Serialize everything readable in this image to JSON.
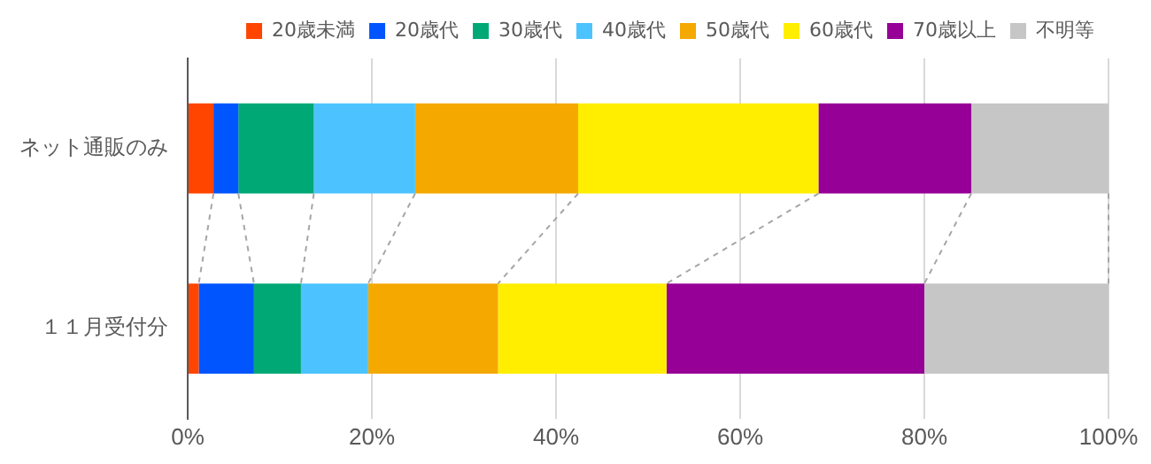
{
  "chart_data": {
    "type": "bar",
    "orientation": "horizontal",
    "stacked": true,
    "categories": [
      "ネット通販のみ",
      "１１月受付分"
    ],
    "series": [
      {
        "name": "20歳未満",
        "color": "#ff4500",
        "values": [
          2.8,
          1.2
        ]
      },
      {
        "name": "20歳代",
        "color": "#0055ff",
        "values": [
          2.7,
          6.0
        ]
      },
      {
        "name": "30歳代",
        "color": "#00a876",
        "values": [
          8.2,
          5.1
        ]
      },
      {
        "name": "40歳代",
        "color": "#4cc3ff",
        "values": [
          11.0,
          7.3
        ]
      },
      {
        "name": "50歳代",
        "color": "#f5a800",
        "values": [
          17.7,
          14.1
        ]
      },
      {
        "name": "60歳代",
        "color": "#ffee00",
        "values": [
          26.1,
          18.3
        ]
      },
      {
        "name": "70歳以上",
        "color": "#960096",
        "values": [
          16.6,
          28.0
        ]
      },
      {
        "name": "不明等",
        "color": "#c6c6c6",
        "values": [
          14.9,
          20.0
        ]
      }
    ],
    "xlim": [
      0,
      100
    ],
    "xticks": [
      {
        "value": 0,
        "label": "0%"
      },
      {
        "value": 20,
        "label": "20%"
      },
      {
        "value": 40,
        "label": "40%"
      },
      {
        "value": 60,
        "label": "60%"
      },
      {
        "value": 80,
        "label": "80%"
      },
      {
        "value": 100,
        "label": "100%"
      }
    ],
    "grid": "x",
    "legend": "top"
  }
}
